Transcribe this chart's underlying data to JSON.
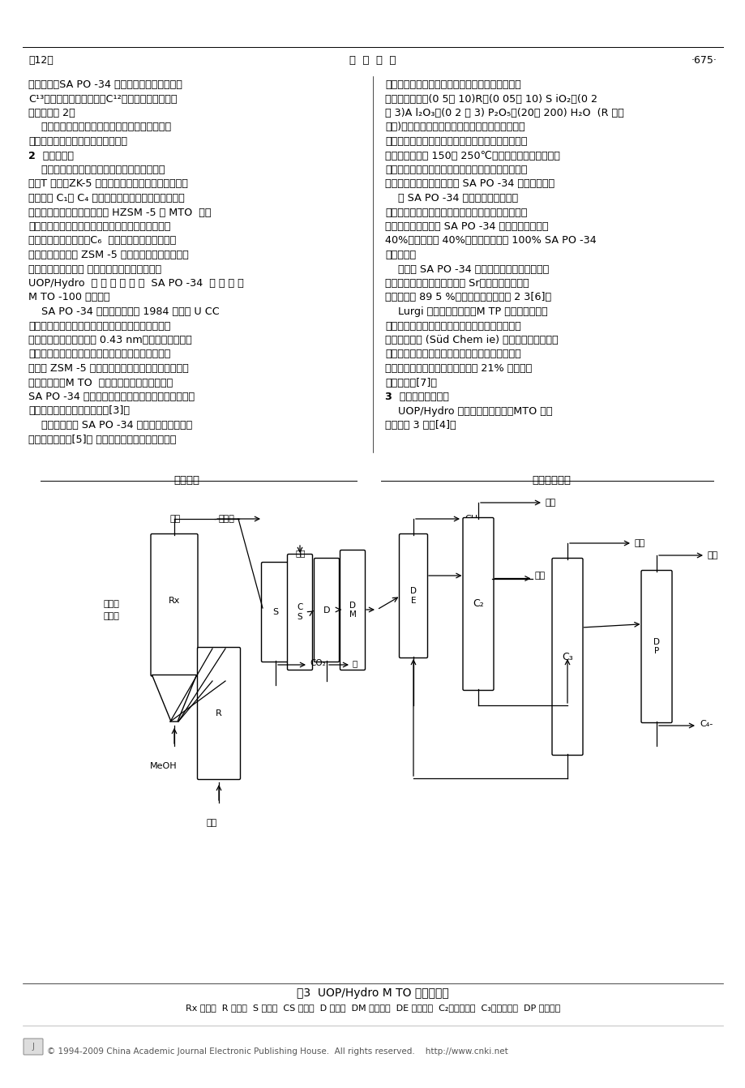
{
  "page_header_left": "第12期",
  "page_header_center": "化  学  世  界",
  "page_header_right": "·675·",
  "background_color": "#ffffff",
  "footer_copyright": "© 1994-2009 China Academic Journal Electronic Publishing House.  All rights reserved.    http://www.cnki.net",
  "figure_caption": "图3  UOP/Hydro M TO 工艺流程图",
  "figure_legend": "Rx 反应器  R 再生器  S 分离器  CS 简洗塔  D 干燥器  DM 脱甲烷塔  DE 脱乙烷塔  C₂乙烯分离塔  C₃丙烯分离塔  DP 脱丙烷塔",
  "left_col_lines": [
    "该机理是以SA PO -34 为催化剂，以甲醇进料的",
    "C¹³标记和来自乙醇的乙烯C¹²标记跟踪而提出的，",
    "其机理见图 2。",
    "    除上述机理外，也有的认为反应为自由基机理，",
    "而二甲醚可能是一种甲基自由基源。",
    "2  催化剂制备",
    "    可用于甲醇制烯烃的催化制包括菱沸石、毛沸",
    "石、T 沸石、ZK-5 等。但研究表明这类小孔沸石虽然",
    "主产物是 C₁～ C₄ 直锁烯烃，但受孔结构限制，催化",
    "剂很快就积炭。中孔沸石，如 HZSM -5 对 MTO  反应",
    "有较高活性，且失活速率明显低于小孔沸石，但乙烯",
    "选择性较差，而丙烯和C₆  芳烃收率较高。之后通过",
    "使用金属杂原子对 ZSM -5 进行改性，使烯烃选择性",
    "有较大幅度的提高。 然而，取得突破性进展的是",
    "UOP/Hydro  公 司 开 发 的 以  SA PO -34  为 基 础 的",
    "M TO -100 催化剂。",
    "    SA PO -34 非沸石分子筛是 1984 年美国 U CC",
    "研制的一种结晶磷硅铝酸盐，其结构类似菱沸石，具",
    "有三维交叉孔道，孔径为 0.43 nm，属立方晶系，其",
    "强择形的八元环通道可抑制芳烃的生成。另外，它的",
    "孔径比 ZSM -5 小，但孔道密度大，可利用的比表面",
    "积多。所以，M TO  的反应速度又较快。再加上",
    "SA PO -34 的良好热稳定性和水热稳定性，这对流化",
    "床连续反应再生操作十分重要[3]。",
    "    专利中披露的 SA PO -34 详细配制过程是采用",
    "水热法直接合成[5]。 硅源、铝源和磷源分别为硅溶"
  ],
  "right_col_lines": [
    "胶、拟薄水铝石和过磷酸。模板剂为四乙基氢氧化",
    "鐵。按照关系式(0 5～ 10)R：(0 05～ 10) S iO₂：(0 2",
    "～ 3)A l₂O₃：(0 2 ～ 3) P₂O₅：(20～ 200) H₂O  (R 为模",
    "板剂)确定原料组成。在搔拌的同时，将计量原料按",
    "一定顺序混合，充分搔拌成凝胶，装入不锈钉高压釜",
    "中，封闭加热到 150～ 250℃，在自身压力下，进行恒",
    "温晶化反应。晶化完全后，将固体产物经过滤或离心",
    "分离，水洗并干燥，即得到 SA PO -34 分子筛原粉。",
    "    以 SA PO -34 原粉为活性基质，再",
    "添加粘结剂和填充剂，并经喷雾干燥成型，在适当温",
    "度下焙烧即可。通常 SA PO -34 在催化剂中含量为",
    "40%，高岭土为 40%，其反应结果与 100% SA PO -34",
    "粉末相同。",
    "    近年来 SA PO -34 催化剂的改性主要是通过引",
    "入简土金属实现的。例如引入 Sr，可使乙烯和丙烯",
    "总收率可达 89 5 %，乙烯与丙烯比高达 2 3[6]。",
    "    Lurgi 公司开发的固定床M TP 工艺，虽没有披",
    "露其详细催化剂制备方法，但最新报道称是由德国",
    "南方化学公司 (Süd Chem ie) 提供的专用沸石催化",
    "剂。并称该催化剂不但对丙烯具高选择性而且可在",
    "接近反应温度和压力下用氧含量达 21% 的氮气便",
    "可就地再生[7]。",
    "3  代表性的工艺流程",
    "    UOP/Hydro 两公司开发的流化庍MTO 工艺",
    "流程如图 3 所示[4]。"
  ]
}
